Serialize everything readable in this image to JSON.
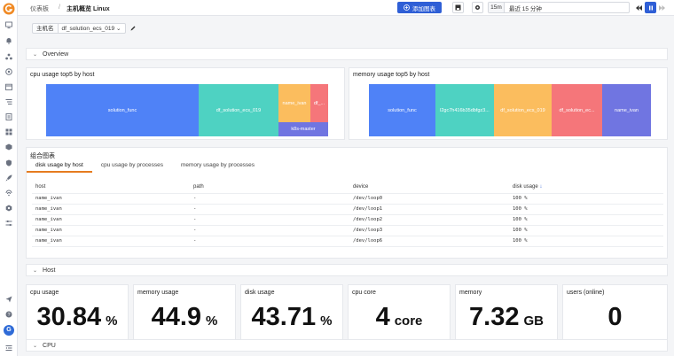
{
  "colors": {
    "blue": "#4f82f7",
    "teal": "#4ed2c2",
    "orange": "#fbbd5e",
    "red": "#f5767a",
    "purple": "#7075e1",
    "accent": "#2f5fd6",
    "tab_underline": "#e67c1f"
  },
  "topbar": {
    "breadcrumb_root": "仪表板",
    "breadcrumb_current": "主机概览 Linux",
    "add_chart_label": "添加图表",
    "quick_range": "15m",
    "range_text": "最近 15 分钟"
  },
  "filter": {
    "label": "主机名",
    "value": "df_solution_ecs_019"
  },
  "sections": {
    "overview": "Overview",
    "host": "Host",
    "cpu": "CPU"
  },
  "cpu_top5": {
    "title": "cpu usage top5 by host",
    "items": [
      "solution_func",
      "df_solution_ecs_019",
      "name_ivan",
      "df_...",
      "k8s-master"
    ]
  },
  "mem_top5": {
    "title": "memory usage top5 by host",
    "items": [
      "solution_func",
      "l2gc7h416b35dbfgz3...",
      "df_solution_ecs_019",
      "df_solution_ec...",
      "name_ivan"
    ]
  },
  "combo": {
    "title": "组合图表",
    "tabs": [
      "disk usage by host",
      "cpu usage by processes",
      "memory usage by processes"
    ],
    "columns": [
      "host",
      "path",
      "device",
      "disk usage"
    ],
    "rows": [
      [
        "name_ivan",
        "-",
        "/dev/loop0",
        "100 %"
      ],
      [
        "name_ivan",
        "-",
        "/dev/loop1",
        "100 %"
      ],
      [
        "name_ivan",
        "-",
        "/dev/loop2",
        "100 %"
      ],
      [
        "name_ivan",
        "-",
        "/dev/loop3",
        "100 %"
      ],
      [
        "name_ivan",
        "-",
        "/dev/loop6",
        "100 %"
      ]
    ]
  },
  "stats": [
    {
      "title": "cpu usage",
      "value": "30.84",
      "unit": "%"
    },
    {
      "title": "memory usage",
      "value": "44.9",
      "unit": "%"
    },
    {
      "title": "disk usage",
      "value": "43.71",
      "unit": "%"
    },
    {
      "title": "cpu core",
      "value": "4",
      "unit": "core"
    },
    {
      "title": "memory",
      "value": "7.32",
      "unit": "GB"
    },
    {
      "title": "users (online)",
      "value": "0",
      "unit": ""
    }
  ],
  "avatar_letter": "G",
  "icons": [
    "logo-icon",
    "monitor-icon",
    "bell-icon",
    "nodes-icon",
    "circle-icon",
    "calendar-icon",
    "list-icon",
    "doc-icon",
    "apps-icon",
    "cube-icon",
    "shield-icon",
    "rocket-icon",
    "signal-icon",
    "hexagon-icon",
    "settings-icon",
    "send-icon",
    "help-icon",
    "collapse-icon"
  ]
}
